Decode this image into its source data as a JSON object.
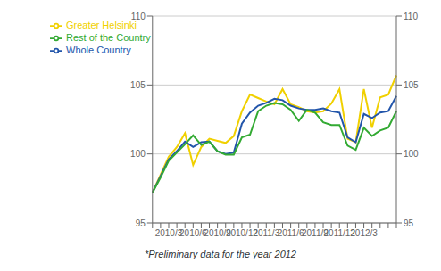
{
  "chart_data": {
    "type": "line",
    "annotations": [
      "*Preliminary data for the year 2012"
    ],
    "categories": [
      null,
      null,
      "2010/3",
      null,
      null,
      "2010/6",
      null,
      null,
      "2010/9",
      null,
      null,
      "2010/12",
      null,
      null,
      "2011/3",
      null,
      null,
      "2011/6",
      null,
      null,
      "2011/9",
      null,
      null,
      "2011/12",
      null,
      null,
      "2012/3",
      null,
      null,
      null,
      null
    ],
    "series": [
      {
        "name": "Greater Helsinki",
        "color": "#F0D000",
        "values": [
          97.2,
          98.5,
          99.8,
          100.5,
          101.5,
          99.2,
          100.5,
          101.1,
          100.95,
          100.8,
          101.3,
          103.1,
          104.3,
          104.05,
          103.8,
          103.6,
          104.7,
          103.6,
          103.4,
          103.1,
          103.0,
          103.1,
          103.65,
          104.7,
          101.1,
          100.85,
          104.7,
          101.9,
          104.1,
          104.3,
          105.7
        ]
      },
      {
        "name": "Whole Country",
        "color": "#2255AA",
        "values": [
          97.2,
          98.4,
          99.6,
          100.2,
          100.9,
          100.5,
          100.85,
          100.9,
          100.2,
          100.0,
          100.1,
          102.2,
          103.0,
          103.5,
          103.7,
          104.0,
          103.9,
          103.5,
          103.3,
          103.2,
          103.2,
          103.3,
          103.1,
          103.0,
          101.2,
          100.85,
          102.9,
          102.6,
          103.0,
          103.1,
          104.2
        ]
      },
      {
        "name": "Rest of the Country",
        "color": "#33AA33",
        "values": [
          97.2,
          98.3,
          99.5,
          100.1,
          100.7,
          101.35,
          100.65,
          100.9,
          100.2,
          99.95,
          99.95,
          101.2,
          101.4,
          103.1,
          103.5,
          103.7,
          103.6,
          103.2,
          102.4,
          103.2,
          103.0,
          102.3,
          102.1,
          102.1,
          100.6,
          100.3,
          101.9,
          101.3,
          101.7,
          101.9,
          103.1
        ]
      }
    ],
    "ylim": [
      95,
      110
    ],
    "yticks": [
      95,
      100,
      105,
      110
    ],
    "y2lim": [
      95,
      110
    ],
    "y2ticks": [
      95,
      100,
      105,
      110
    ],
    "grid": true,
    "legend": "upper left"
  }
}
